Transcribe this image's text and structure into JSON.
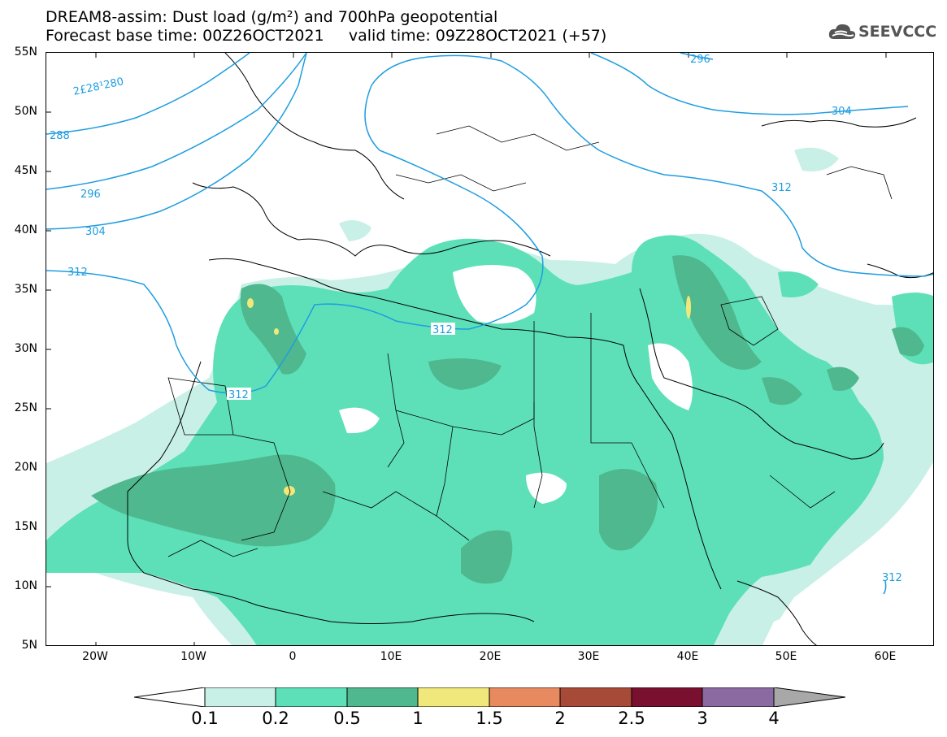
{
  "header": {
    "title_line1": "DREAM8-assim: Dust load (g/m²) and 700hPa geopotential",
    "title_line2": "Forecast base time: 00Z26OCT2021     valid time: 09Z28OCT2021 (+57)"
  },
  "logo": {
    "text": "SEEVCCC",
    "icon": "cloud-logo-icon",
    "color": "#555555"
  },
  "axes": {
    "lat_labels": [
      "55N",
      "50N",
      "45N",
      "40N",
      "35N",
      "30N",
      "25N",
      "20N",
      "15N",
      "10N",
      "5N"
    ],
    "lon_labels": [
      "20W",
      "10W",
      "0",
      "10E",
      "20E",
      "30E",
      "40E",
      "50E",
      "60E"
    ]
  },
  "contours": {
    "labels": [
      "2£28¹280",
      "288",
      "296",
      "304",
      "312",
      "312",
      "312",
      "296",
      "304",
      "312",
      "312"
    ]
  },
  "colorbar": {
    "labels": [
      "0.1",
      "0.2",
      "0.5",
      "1",
      "1.5",
      "2",
      "2.5",
      "3",
      "4"
    ],
    "colors": [
      "#ffffff",
      "#c8f0e6",
      "#5de0b8",
      "#4fb88e",
      "#f0e87a",
      "#e88a60",
      "#a84a38",
      "#7a1030",
      "#8a6aa0",
      "#a8a8a8"
    ]
  },
  "colors": {
    "contour": "#1e9de0",
    "coast": "#000000"
  }
}
